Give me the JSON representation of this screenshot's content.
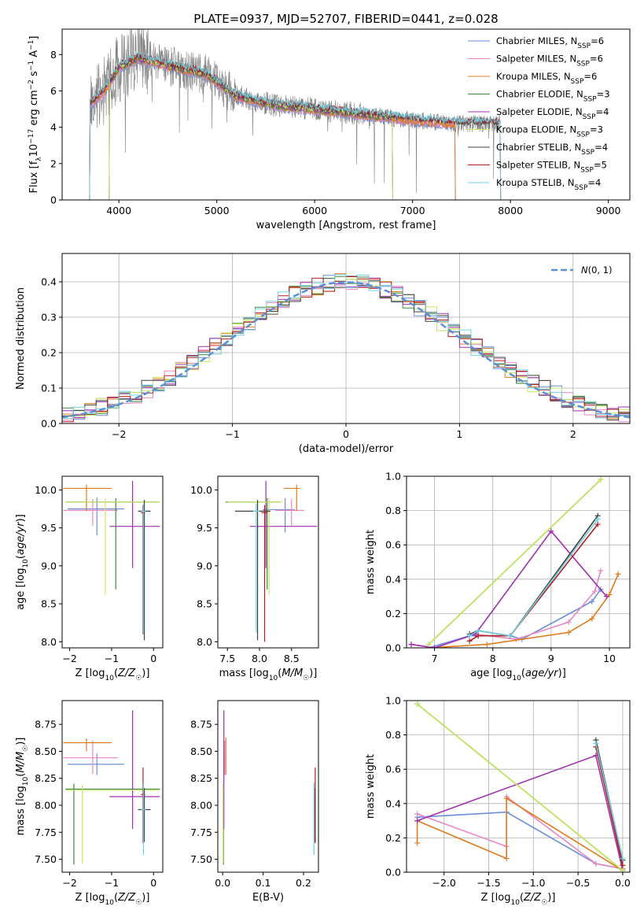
{
  "figure_title": "PLATE=0937, MJD=52707, FIBERID=0441, z=0.028",
  "colors": {
    "data": "#808080",
    "model_palette": [
      "#6a8fd8",
      "#e887c4",
      "#e07b1c",
      "#3c8a3c",
      "#a030b0",
      "#c8e860",
      "#404040",
      "#b02020",
      "#70d0e0"
    ],
    "normal": "#5b8fd6",
    "grid": "#b0b0b0"
  },
  "chart_data": [
    {
      "id": "spectrum",
      "type": "line",
      "title": "PLATE=0937, MJD=52707, FIBERID=0441, z=0.028",
      "xlabel": "wavelength [Angstrom, rest frame]",
      "ylabel": "Flux [f_λ 10^-17 erg cm^-2 s^-1 A^-1]",
      "xlim": [
        3420,
        9220
      ],
      "ylim": [
        0,
        9.4
      ],
      "xticks": [
        4000,
        5000,
        6000,
        7000,
        8000,
        9000
      ],
      "yticks": [
        0,
        2,
        4,
        6,
        8
      ],
      "grid": false,
      "legend_position": "top-right",
      "data_series": {
        "name": "data",
        "x_range": [
          3700,
          7900
        ],
        "color": "#808080"
      },
      "continuum": {
        "x": [
          3700,
          3850,
          4000,
          4200,
          4500,
          4900,
          5200,
          5600,
          6000,
          6500,
          7000,
          7440
        ],
        "y": [
          5.2,
          6.0,
          7.3,
          7.8,
          7.4,
          6.9,
          5.7,
          5.2,
          5.0,
          4.7,
          4.4,
          4.2
        ]
      },
      "models": [
        {
          "name": "Chabrier MILES",
          "nssp": "6",
          "color": "#6a8fd8",
          "x_range": [
            3700,
            7440
          ]
        },
        {
          "name": "Salpeter MILES",
          "nssp": "6",
          "color": "#e887c4",
          "x_range": [
            3700,
            7440
          ]
        },
        {
          "name": "Kroupa MILES",
          "nssp": "6",
          "color": "#e07b1c",
          "x_range": [
            3700,
            7440
          ]
        },
        {
          "name": "Chabrier ELODIE",
          "nssp": "3",
          "color": "#3c8a3c",
          "x_range": [
            3900,
            6800
          ]
        },
        {
          "name": "Salpeter ELODIE",
          "nssp": "4",
          "color": "#a030b0",
          "x_range": [
            3900,
            6800
          ]
        },
        {
          "name": "Kroupa ELODIE",
          "nssp": "3",
          "color": "#c8e860",
          "x_range": [
            3900,
            6800
          ]
        },
        {
          "name": "Chabrier STELIB",
          "nssp": "4",
          "color": "#404040",
          "x_range": [
            3700,
            7900
          ]
        },
        {
          "name": "Salpeter STELIB",
          "nssp": "5",
          "color": "#b02020",
          "x_range": [
            3700,
            7900
          ]
        },
        {
          "name": "Kroupa STELIB",
          "nssp": "4",
          "color": "#70d0e0",
          "x_range": [
            3700,
            7900
          ]
        }
      ]
    },
    {
      "id": "residuals",
      "type": "histogram",
      "xlabel": "(data-model)/error",
      "ylabel": "Normed distribution",
      "xlim": [
        -2.5,
        2.5
      ],
      "ylim": [
        0,
        0.48
      ],
      "xticks": [
        -2,
        -1,
        0,
        1,
        2
      ],
      "yticks": [
        0.0,
        0.1,
        0.2,
        0.3,
        0.4
      ],
      "grid": true,
      "legend_position": "top-right",
      "reference": {
        "name": "N(0,1)",
        "mu": 0,
        "sigma": 1,
        "color": "#5b8fd6"
      },
      "bin_width": 0.1
    },
    {
      "id": "age-vs-Z",
      "type": "errorbar",
      "xlabel": "Z [log10(Z/Z☉)]",
      "ylabel": "age [log10(age/yr)]",
      "xlim": [
        -2.18,
        0.22
      ],
      "ylim": [
        7.92,
        10.18
      ],
      "xticks": [
        -2,
        -1,
        0
      ],
      "yticks": [
        8.0,
        8.5,
        9.0,
        9.5,
        10.0
      ],
      "points": [
        {
          "x": -1.35,
          "xerr": [
            0.7,
            0.65
          ],
          "y": 9.75,
          "yerr": [
            0.35,
            0.15
          ],
          "color": "#6a8fd8"
        },
        {
          "x": -1.45,
          "xerr": [
            0.7,
            0.6
          ],
          "y": 9.73,
          "yerr": [
            0.2,
            0.15
          ],
          "color": "#e887c4"
        },
        {
          "x": -1.6,
          "xerr": [
            0.55,
            0.6
          ],
          "y": 10.02,
          "yerr": [
            0.3,
            0.05
          ],
          "color": "#e07b1c"
        },
        {
          "x": -0.9,
          "xerr": [
            1.2,
            1.05
          ],
          "y": 9.84,
          "yerr": [
            1.15,
            0.05
          ],
          "color": "#3c8a3c"
        },
        {
          "x": -0.5,
          "xerr": [
            0.55,
            0.65
          ],
          "y": 9.52,
          "yerr": [
            0.55,
            0.6
          ],
          "color": "#a030b0"
        },
        {
          "x": -1.15,
          "xerr": [
            0.95,
            1.3
          ],
          "y": 9.84,
          "yerr": [
            1.22,
            0.05
          ],
          "color": "#c8e860"
        },
        {
          "x": -0.22,
          "xerr": [
            0.15,
            0.15
          ],
          "y": 9.72,
          "yerr": [
            1.7,
            0.15
          ],
          "color": "#404040"
        },
        {
          "x": -0.25,
          "xerr": [
            0.05,
            0.05
          ],
          "y": 9.7,
          "yerr": [
            1.6,
            0.1
          ],
          "color": "#b02020"
        },
        {
          "x": -0.24,
          "xerr": [
            0.05,
            0.05
          ],
          "y": 9.72,
          "yerr": [
            1.6,
            0.1
          ],
          "color": "#70d0e0"
        }
      ]
    },
    {
      "id": "age-vs-mass",
      "type": "errorbar",
      "xlabel": "mass [log10(M/M☉)]",
      "ylabel": "",
      "xlim": [
        7.35,
        8.92
      ],
      "ylim": [
        7.92,
        10.18
      ],
      "xticks": [
        7.5,
        8.0,
        8.5
      ],
      "yticks": [
        8.0,
        8.5,
        9.0,
        9.5,
        10.0
      ],
      "points": [
        {
          "x": 8.4,
          "xerr": [
            0.35,
            0.15
          ],
          "y": 9.74,
          "yerr": [
            0.3,
            0.15
          ],
          "color": "#6a8fd8"
        },
        {
          "x": 8.5,
          "xerr": [
            0.25,
            0.2
          ],
          "y": 9.73,
          "yerr": [
            0.2,
            0.15
          ],
          "color": "#e887c4"
        },
        {
          "x": 8.58,
          "xerr": [
            0.2,
            0.05
          ],
          "y": 10.02,
          "yerr": [
            0.3,
            0.05
          ],
          "color": "#e07b1c"
        },
        {
          "x": 8.12,
          "xerr": [
            0.65,
            0.2
          ],
          "y": 9.84,
          "yerr": [
            1.15,
            0.05
          ],
          "color": "#3c8a3c"
        },
        {
          "x": 8.1,
          "xerr": [
            0.25,
            0.8
          ],
          "y": 9.52,
          "yerr": [
            0.55,
            0.6
          ],
          "color": "#a030b0"
        },
        {
          "x": 8.15,
          "xerr": [
            0.65,
            0.2
          ],
          "y": 9.84,
          "yerr": [
            1.22,
            0.05
          ],
          "color": "#c8e860"
        },
        {
          "x": 7.97,
          "xerr": [
            0.35,
            0.2
          ],
          "y": 9.72,
          "yerr": [
            1.7,
            0.15
          ],
          "color": "#404040"
        },
        {
          "x": 8.08,
          "xerr": [
            0.05,
            0.05
          ],
          "y": 9.7,
          "yerr": [
            1.7,
            0.1
          ],
          "color": "#b02020"
        },
        {
          "x": 7.95,
          "xerr": [
            0.05,
            0.05
          ],
          "y": 9.72,
          "yerr": [
            1.6,
            0.1
          ],
          "color": "#70d0e0"
        }
      ]
    },
    {
      "id": "weight-vs-age",
      "type": "line",
      "xlabel": "age [log10(age/yr)]",
      "ylabel": "mass weight",
      "xlim": [
        6.52,
        10.35
      ],
      "ylim": [
        0,
        1.0
      ],
      "xticks": [
        7,
        8,
        9,
        10
      ],
      "yticks": [
        0.0,
        0.2,
        0.4,
        0.6,
        0.8,
        1.0
      ],
      "grid": true,
      "series": [
        {
          "color": "#6a8fd8",
          "x": [
            6.9,
            7.6,
            8.3,
            8.5,
            9.7,
            9.85
          ],
          "y": [
            0.0,
            0.07,
            0.07,
            0.05,
            0.27,
            0.34
          ]
        },
        {
          "color": "#e887c4",
          "x": [
            6.6,
            7.0,
            7.7,
            8.4,
            9.3,
            9.75,
            9.85
          ],
          "y": [
            0.02,
            0.0,
            0.08,
            0.05,
            0.15,
            0.33,
            0.45
          ]
        },
        {
          "color": "#e07b1c",
          "x": [
            6.9,
            7.9,
            9.3,
            9.7,
            10.0,
            10.15
          ],
          "y": [
            0.0,
            0.02,
            0.09,
            0.17,
            0.31,
            0.43
          ]
        },
        {
          "color": "#3c8a3c",
          "x": [
            6.9,
            9.85
          ],
          "y": [
            0.02,
            0.98
          ]
        },
        {
          "color": "#a030b0",
          "x": [
            6.6,
            7.0,
            7.7,
            9.0,
            9.95
          ],
          "y": [
            0.02,
            0.0,
            0.08,
            0.68,
            0.3
          ]
        },
        {
          "color": "#c8e860",
          "x": [
            6.9,
            9.85
          ],
          "y": [
            0.02,
            0.98
          ]
        },
        {
          "color": "#404040",
          "x": [
            7.6,
            7.75,
            8.3,
            9.8
          ],
          "y": [
            0.08,
            0.1,
            0.07,
            0.77
          ]
        },
        {
          "color": "#b02020",
          "x": [
            7.6,
            7.75,
            8.3,
            9.8
          ],
          "y": [
            0.04,
            0.07,
            0.07,
            0.72
          ]
        },
        {
          "color": "#70d0e0",
          "x": [
            7.6,
            7.75,
            8.3,
            9.8
          ],
          "y": [
            0.07,
            0.1,
            0.07,
            0.75
          ]
        }
      ]
    },
    {
      "id": "mass-vs-Z",
      "type": "errorbar",
      "xlabel": "Z [log10(Z/Z☉)]",
      "ylabel": "mass [log10(M/M☉)]",
      "xlim": [
        -2.18,
        0.22
      ],
      "ylim": [
        7.38,
        8.97
      ],
      "xticks": [
        -2,
        -1,
        0
      ],
      "yticks": [
        7.5,
        7.75,
        8.0,
        8.25,
        8.5,
        8.75
      ],
      "points": [
        {
          "x": -1.35,
          "xerr": [
            0.7,
            0.65
          ],
          "y": 8.38,
          "yerr": [
            0.1,
            0.1
          ],
          "color": "#6a8fd8"
        },
        {
          "x": -1.45,
          "xerr": [
            0.7,
            0.6
          ],
          "y": 8.44,
          "yerr": [
            0.15,
            0.16
          ],
          "color": "#e887c4"
        },
        {
          "x": -1.6,
          "xerr": [
            0.55,
            0.6
          ],
          "y": 8.58,
          "yerr": [
            0.08,
            0.04
          ],
          "color": "#e07b1c"
        },
        {
          "x": -1.9,
          "xerr": [
            0.2,
            2.05
          ],
          "y": 8.15,
          "yerr": [
            0.7,
            0.05
          ],
          "color": "#3c8a3c"
        },
        {
          "x": -0.5,
          "xerr": [
            0.55,
            0.65
          ],
          "y": 8.08,
          "yerr": [
            0.3,
            0.8
          ],
          "color": "#a030b0"
        },
        {
          "x": -1.7,
          "xerr": [
            0.4,
            1.85
          ],
          "y": 8.14,
          "yerr": [
            0.68,
            0.05
          ],
          "color": "#c8e860"
        },
        {
          "x": -0.22,
          "xerr": [
            0.15,
            0.15
          ],
          "y": 7.96,
          "yerr": [
            0.3,
            0.2
          ],
          "color": "#404040"
        },
        {
          "x": -0.25,
          "xerr": [
            0.05,
            0.05
          ],
          "y": 8.1,
          "yerr": [
            0.45,
            0.25
          ],
          "color": "#b02020"
        },
        {
          "x": -0.24,
          "xerr": [
            0.05,
            0.05
          ],
          "y": 7.96,
          "yerr": [
            0.42,
            0.25
          ],
          "color": "#70d0e0"
        }
      ]
    },
    {
      "id": "mass-vs-EBV",
      "type": "errorbar",
      "xlabel": "E(B-V)",
      "ylabel": "",
      "xlim": [
        -0.012,
        0.237
      ],
      "ylim": [
        7.38,
        8.97
      ],
      "xticks": [
        0.0,
        0.1,
        0.2
      ],
      "yticks": [
        7.5,
        7.75,
        8.0,
        8.25,
        8.5,
        8.75
      ],
      "points": [
        {
          "x": 0.004,
          "xerr": [
            0.001,
            0.001
          ],
          "y": 8.38,
          "yerr": [
            0.1,
            0.1
          ],
          "color": "#6a8fd8"
        },
        {
          "x": 0.005,
          "xerr": [
            0.001,
            0.001
          ],
          "y": 8.44,
          "yerr": [
            0.15,
            0.16
          ],
          "color": "#e887c4"
        },
        {
          "x": 0.008,
          "xerr": [
            0.001,
            0.001
          ],
          "y": 8.58,
          "yerr": [
            0.3,
            0.05
          ],
          "color": "#e07b1c"
        },
        {
          "x": 0.002,
          "xerr": [
            0.001,
            0.001
          ],
          "y": 8.15,
          "yerr": [
            0.7,
            0.05
          ],
          "color": "#3c8a3c"
        },
        {
          "x": 0.003,
          "xerr": [
            0.001,
            0.001
          ],
          "y": 8.08,
          "yerr": [
            0.3,
            0.8
          ],
          "color": "#a030b0"
        },
        {
          "x": 0.001,
          "xerr": [
            0.001,
            0.001
          ],
          "y": 8.14,
          "yerr": [
            0.68,
            0.05
          ],
          "color": "#c8e860"
        },
        {
          "x": 0.227,
          "xerr": [
            0.002,
            0.002
          ],
          "y": 7.96,
          "yerr": [
            0.3,
            0.2
          ],
          "color": "#404040"
        },
        {
          "x": 0.229,
          "xerr": [
            0.001,
            0.001
          ],
          "y": 8.1,
          "yerr": [
            0.45,
            0.25
          ],
          "color": "#b02020"
        },
        {
          "x": 0.226,
          "xerr": [
            0.001,
            0.001
          ],
          "y": 7.96,
          "yerr": [
            0.42,
            0.25
          ],
          "color": "#70d0e0"
        }
      ]
    },
    {
      "id": "weight-vs-Z",
      "type": "line",
      "xlabel": "Z [log10(Z/Z☉)]",
      "ylabel": "mass weight",
      "xlim": [
        -2.42,
        0.08
      ],
      "ylim": [
        0,
        1.0
      ],
      "xticks": [
        -2.0,
        -1.5,
        -1.0,
        -0.5,
        0.0
      ],
      "yticks": [
        0.0,
        0.2,
        0.4,
        0.6,
        0.8,
        1.0
      ],
      "grid": true,
      "series": [
        {
          "color": "#6a8fd8",
          "x": [
            -2.3,
            -1.3,
            -0.3,
            0.0
          ],
          "y": [
            0.32,
            0.35,
            0.05,
            0.02
          ]
        },
        {
          "color": "#e887c4",
          "x": [
            -2.3,
            -1.3,
            -1.3,
            -0.3,
            0.0
          ],
          "y": [
            0.34,
            0.15,
            0.44,
            0.05,
            0.02
          ]
        },
        {
          "color": "#e07b1c",
          "x": [
            -2.3,
            -2.3,
            -1.3,
            -1.3,
            0.0
          ],
          "y": [
            0.17,
            0.3,
            0.08,
            0.43,
            0.01
          ]
        },
        {
          "color": "#3c8a3c",
          "x": [
            -2.3,
            0.0
          ],
          "y": [
            0.98,
            0.01
          ]
        },
        {
          "color": "#a030b0",
          "x": [
            -2.3,
            -0.3,
            0.0
          ],
          "y": [
            0.3,
            0.68,
            0.01
          ]
        },
        {
          "color": "#c8e860",
          "x": [
            -2.3,
            0.0
          ],
          "y": [
            0.98,
            0.01
          ]
        },
        {
          "color": "#404040",
          "x": [
            -0.3,
            0.0
          ],
          "y": [
            0.77,
            0.07
          ]
        },
        {
          "color": "#b02020",
          "x": [
            -0.3,
            0.0
          ],
          "y": [
            0.73,
            0.04
          ]
        },
        {
          "color": "#70d0e0",
          "x": [
            -0.3,
            0.0
          ],
          "y": [
            0.75,
            0.08
          ]
        }
      ]
    }
  ]
}
